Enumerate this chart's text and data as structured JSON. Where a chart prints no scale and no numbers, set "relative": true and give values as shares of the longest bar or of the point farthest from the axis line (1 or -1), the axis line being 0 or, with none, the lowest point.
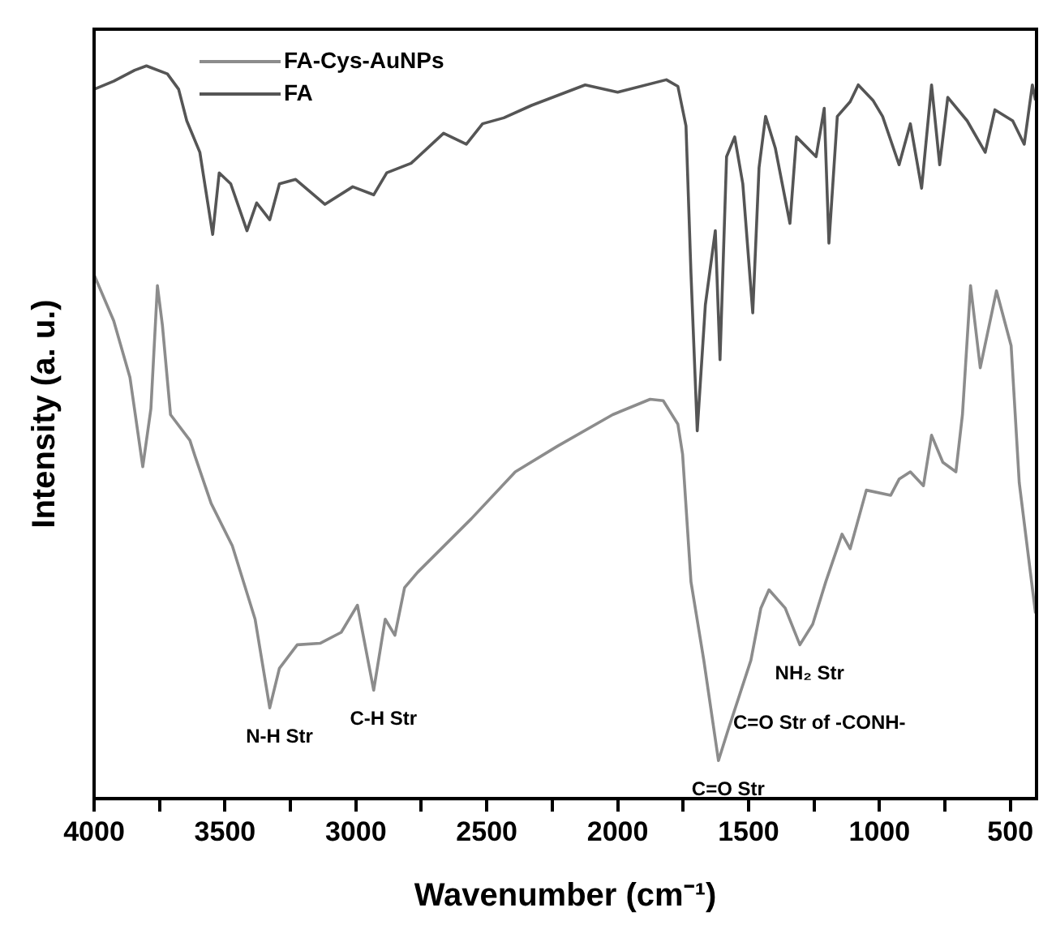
{
  "chart_data": {
    "type": "line",
    "xlabel": "Wavenumber (cm⁻¹)",
    "ylabel": "Intensity (a. u.)",
    "relative": true,
    "xlim": [
      4000,
      400
    ],
    "xticks": [
      4000,
      {
        "value": 3750,
        "label": null
      },
      3500,
      {
        "value": 3250,
        "label": null
      },
      3000,
      {
        "value": 2750,
        "label": null
      },
      2500,
      {
        "value": 2250,
        "label": null
      },
      2000,
      {
        "value": 1750,
        "label": null
      },
      1500,
      {
        "value": 1250,
        "label": null
      },
      1000,
      {
        "value": 750,
        "label": null
      },
      500
    ],
    "grid": false,
    "legend": "top left",
    "marker": "none",
    "line_style": "solid",
    "series": [
      {
        "name": "FA-Cys-AuNPs",
        "color": "#8c8c8c",
        "x": [
          4000,
          3925,
          3863,
          3814,
          3783,
          3758,
          3739,
          3708,
          3634,
          3615,
          3553,
          3472,
          3385,
          3329,
          3292,
          3224,
          3137,
          3056,
          2994,
          2932,
          2888,
          2851,
          2814,
          2764,
          2559,
          2391,
          2230,
          2019,
          1876,
          1826,
          1770,
          1752,
          1720,
          1671,
          1615,
          1578,
          1534,
          1491,
          1453,
          1422,
          1360,
          1304,
          1255,
          1205,
          1143,
          1112,
          1050,
          957,
          925,
          882,
          832,
          801,
          758,
          708,
          683,
          652,
          615,
          553,
          497,
          466,
          404
        ],
        "values": [
          0.715,
          0.652,
          0.575,
          0.453,
          0.532,
          0.7,
          0.646,
          0.524,
          0.489,
          0.468,
          0.403,
          0.345,
          0.245,
          0.124,
          0.178,
          0.21,
          0.212,
          0.227,
          0.264,
          0.148,
          0.245,
          0.223,
          0.288,
          0.309,
          0.382,
          0.446,
          0.481,
          0.524,
          0.545,
          0.543,
          0.511,
          0.47,
          0.296,
          0.189,
          0.052,
          0.094,
          0.142,
          0.189,
          0.26,
          0.285,
          0.26,
          0.21,
          0.238,
          0.296,
          0.361,
          0.341,
          0.421,
          0.414,
          0.436,
          0.446,
          0.427,
          0.496,
          0.459,
          0.446,
          0.524,
          0.7,
          0.588,
          0.693,
          0.618,
          0.431,
          0.253
        ]
      },
      {
        "name": "FA",
        "color": "#555555",
        "x": [
          4000,
          3925,
          3845,
          3800,
          3720,
          3677,
          3646,
          3596,
          3547,
          3522,
          3478,
          3416,
          3379,
          3329,
          3292,
          3230,
          3118,
          3012,
          2932,
          2882,
          2789,
          2665,
          2578,
          2516,
          2435,
          2329,
          2124,
          2000,
          1814,
          1770,
          1739,
          1720,
          1696,
          1665,
          1627,
          1609,
          1584,
          1553,
          1522,
          1484,
          1460,
          1435,
          1398,
          1342,
          1317,
          1242,
          1211,
          1193,
          1161,
          1112,
          1081,
          1025,
          988,
          925,
          882,
          839,
          801,
          770,
          739,
          665,
          596,
          559,
          491,
          447,
          416,
          404
        ],
        "values": [
          0.968,
          0.979,
          0.994,
          1,
          0.989,
          0.968,
          0.925,
          0.882,
          0.77,
          0.854,
          0.839,
          0.775,
          0.813,
          0.79,
          0.839,
          0.845,
          0.811,
          0.835,
          0.824,
          0.854,
          0.867,
          0.908,
          0.893,
          0.921,
          0.929,
          0.946,
          0.974,
          0.964,
          0.981,
          0.972,
          0.918,
          0.717,
          0.502,
          0.674,
          0.775,
          0.599,
          0.876,
          0.903,
          0.839,
          0.663,
          0.861,
          0.931,
          0.888,
          0.785,
          0.903,
          0.876,
          0.942,
          0.758,
          0.931,
          0.951,
          0.974,
          0.953,
          0.931,
          0.865,
          0.921,
          0.833,
          0.974,
          0.865,
          0.957,
          0.925,
          0.882,
          0.94,
          0.925,
          0.893,
          0.974,
          0.953
        ]
      }
    ],
    "annotations": [
      {
        "text": "N-H Str",
        "x": 3329,
        "y": 0.124
      },
      {
        "text": "C-H Str",
        "x": 2932,
        "y": 0.148
      },
      {
        "text": "C=O Str",
        "x": 1615,
        "y": 0.052
      },
      {
        "text": "NH₂ Str",
        "x": 1304,
        "y": 0.21
      },
      {
        "text": "C=O Str of -CONH-",
        "x": 1534,
        "y": 0.142
      }
    ]
  }
}
